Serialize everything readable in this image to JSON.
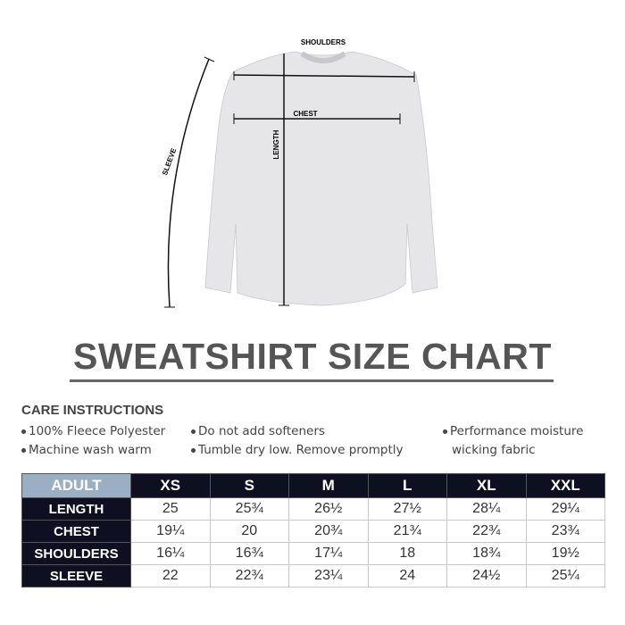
{
  "diagram": {
    "labels": {
      "shoulders": "SHOULDERS",
      "chest": "CHEST",
      "length": "LENGTH",
      "sleeve": "SLEEVE"
    },
    "garment_color": "#e6e6e8"
  },
  "title": "SWEATSHIRT SIZE CHART",
  "care": {
    "heading": "CARE INSTRUCTIONS",
    "items": [
      "100% Fleece Polyester",
      "Machine wash warm",
      "Do not add softeners",
      "Tumble dry low. Remove promptly",
      "Performance moisture",
      "wicking fabric"
    ]
  },
  "table": {
    "corner": "ADULT",
    "sizes": [
      "XS",
      "S",
      "M",
      "L",
      "XL",
      "XXL"
    ],
    "rows": [
      {
        "label": "LENGTH",
        "values": [
          "25",
          "25¾",
          "26½",
          "27½",
          "28¼",
          "29¼"
        ]
      },
      {
        "label": "CHEST",
        "values": [
          "19¼",
          "20",
          "20¾",
          "21¾",
          "22¾",
          "23¾"
        ]
      },
      {
        "label": "SHOULDERS",
        "values": [
          "16¼",
          "16¾",
          "17¼",
          "18",
          "18¾",
          "19½"
        ]
      },
      {
        "label": "SLEEVE",
        "values": [
          "22",
          "22¾",
          "23¼",
          "24",
          "24½",
          "25¼"
        ]
      }
    ],
    "colors": {
      "header": "#0f0f22",
      "corner": "#9aaec4"
    }
  }
}
